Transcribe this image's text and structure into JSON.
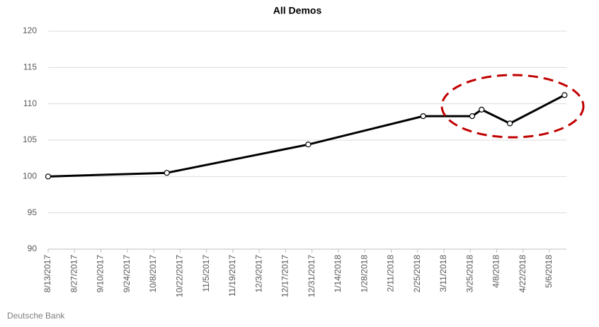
{
  "chart_data": {
    "type": "line",
    "title": "All Demos",
    "source": "Deutsche Bank",
    "x": [
      "8/13/2017",
      "10/15/2017",
      "12/29/2017",
      "2/28/2018",
      "3/26/2018",
      "3/31/2018",
      "4/15/2018",
      "5/14/2018"
    ],
    "values": [
      100,
      100.5,
      104.4,
      108.3,
      108.3,
      109.2,
      107.3,
      111.2
    ],
    "color": "#000000",
    "xlim": [
      "8/13/2017",
      "5/15/2018"
    ],
    "xticks": [
      "8/13/2017",
      "8/27/2017",
      "9/10/2017",
      "9/24/2017",
      "10/8/2017",
      "10/22/2017",
      "11/5/2017",
      "11/19/2017",
      "12/3/2017",
      "12/17/2017",
      "12/31/2017",
      "1/14/2018",
      "1/28/2018",
      "2/11/2018",
      "2/25/2018",
      "3/11/2018",
      "3/25/2018",
      "4/8/2018",
      "4/22/2018",
      "5/6/2018"
    ],
    "ylim": [
      90,
      120
    ],
    "yticks": [
      90,
      95,
      100,
      105,
      110,
      115,
      120
    ],
    "grid": true
  }
}
